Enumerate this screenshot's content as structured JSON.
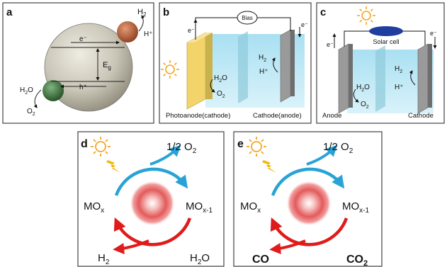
{
  "colors": {
    "panel_border": "#444444",
    "sun": "#f5a623",
    "bolt": "#f2b705",
    "cycle_blue": "#29a3d6",
    "cycle_red": "#e01b1b",
    "electrolyte": "#bfe8f5",
    "photoanode": "#f3d46a",
    "electrode_grey": "#9a9a9a",
    "solar_cell": "#1f3e9e",
    "sphere": "#c9c5b6",
    "cocat_orange": "#b8603a",
    "cocat_green": "#3f7a3f"
  },
  "panel_a": {
    "letter": "a",
    "h2": "H",
    "h2_sub": "2",
    "h_plus": "H⁺",
    "e_minus": "e⁻",
    "eg": "E",
    "eg_sub": "g",
    "h_plus_hole": "h⁺",
    "h2o": "H",
    "h2o_sub": "2",
    "h2o_tail": "O",
    "o2": "O",
    "o2_sub": "2"
  },
  "panel_b": {
    "letter": "b",
    "bias": "Bias",
    "e_left": "e⁻",
    "e_right": "e⁻",
    "h2o": "H",
    "h2o_sub": "2",
    "h2o_tail": "O",
    "o2": "O",
    "o2_sub": "2",
    "h2": "H",
    "h2_sub": "2",
    "h_plus": "H⁺",
    "photoanode_label": "Photoanode(cathode)",
    "cathode_label": "Cathode(anode)"
  },
  "panel_c": {
    "letter": "c",
    "solar_cell": "Solar cell",
    "e_left": "e⁻",
    "e_right": "e⁻",
    "h2o": "H",
    "h2o_sub": "2",
    "h2o_tail": "O",
    "o2": "O",
    "o2_sub": "2",
    "h2": "H",
    "h2_sub": "2",
    "h_plus": "H⁺",
    "anode_label": "Anode",
    "cathode_label": "Cathode"
  },
  "panel_d": {
    "letter": "d",
    "o2_prefix": "1/2 O",
    "o2_sub": "2",
    "mox": "MO",
    "mox_sub": "x",
    "mox1": "MO",
    "mox1_sub": "x-1",
    "h2": "H",
    "h2_sub": "2",
    "h2o": "H",
    "h2o_sub": "2",
    "h2o_tail": "O"
  },
  "panel_e": {
    "letter": "e",
    "o2_prefix": "1/2 O",
    "o2_sub": "2",
    "mox": "MO",
    "mox_sub": "x",
    "mox1": "MO",
    "mox1_sub": "x-1",
    "co": "CO",
    "co2": "CO",
    "co2_sub": "2"
  }
}
